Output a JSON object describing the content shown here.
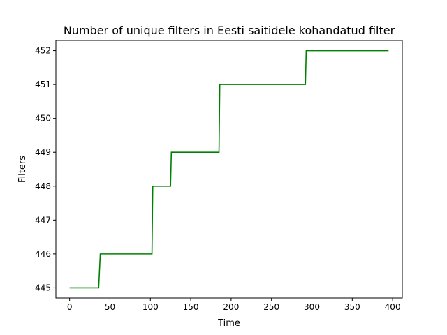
{
  "chart_data": {
    "type": "line",
    "title": "Number of unique filters in Eesti saitidele kohandatud filter",
    "xlabel": "Time",
    "ylabel": "Filters",
    "xlim": [
      -17,
      412
    ],
    "ylim": [
      444.7,
      452.3
    ],
    "x_ticks": [
      0,
      50,
      100,
      150,
      200,
      250,
      300,
      350,
      400
    ],
    "y_ticks": [
      445,
      446,
      447,
      448,
      449,
      450,
      451,
      452
    ],
    "grid": false,
    "series": [
      {
        "color": "#008000",
        "points": [
          [
            0,
            445
          ],
          [
            36,
            445
          ],
          [
            38,
            446
          ],
          [
            102,
            446
          ],
          [
            103,
            448
          ],
          [
            125,
            448
          ],
          [
            126,
            449
          ],
          [
            185,
            449
          ],
          [
            186,
            451
          ],
          [
            292,
            451
          ],
          [
            293,
            452
          ],
          [
            395,
            452
          ]
        ]
      }
    ]
  }
}
